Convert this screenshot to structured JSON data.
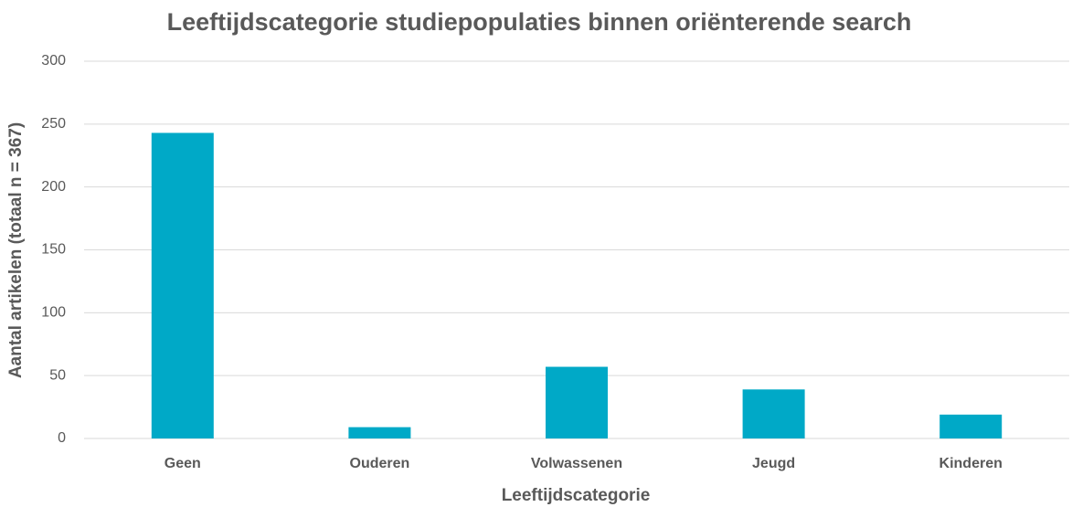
{
  "chart_data": {
    "type": "bar",
    "title": "Leeftijdscategorie studiepopulaties binnen oriënterende search",
    "x_label": "Leeftijdscategorie",
    "y_label": "Aantal artikelen (totaal n = 367)",
    "categories": [
      "Geen",
      "Ouderen",
      "Volwassenen",
      "Jeugd",
      "Kinderen"
    ],
    "values": [
      243,
      9,
      57,
      39,
      19
    ],
    "color": "#00a9c7",
    "ylim": [
      0,
      300
    ],
    "yticks": [
      0,
      50,
      100,
      150,
      200,
      250,
      300
    ],
    "grid": true
  }
}
